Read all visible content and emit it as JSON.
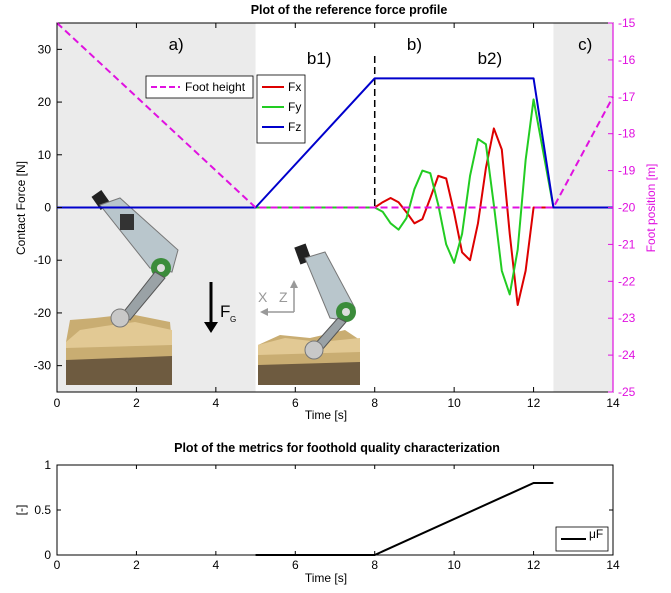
{
  "chart_data": [
    {
      "type": "line",
      "title": "Plot of the reference force profile",
      "xlabel": "Time [s]",
      "ylabel": "Contact Force [N]",
      "y2label": "Foot position [m]",
      "xlim": [
        0,
        14
      ],
      "ylim": [
        -35,
        35
      ],
      "y2lim": [
        -25,
        -15
      ],
      "x_ticks": [
        "0",
        "2",
        "4",
        "6",
        "8",
        "10",
        "12",
        "14"
      ],
      "y_ticks": [
        "30",
        "20",
        "10",
        "0",
        "-10",
        "-20",
        "-30"
      ],
      "y2_ticks": [
        "-15",
        "-16",
        "-17",
        "-18",
        "-19",
        "-20",
        "-21",
        "-22",
        "-23",
        "-24",
        "-25"
      ],
      "shaded_regions": [
        [
          0,
          5
        ],
        [
          12.5,
          14
        ]
      ],
      "vertical_marker": 8,
      "region_labels": [
        {
          "text": "a)",
          "x": 3
        },
        {
          "text": "b1)",
          "x": 6.6
        },
        {
          "text": "b)",
          "x": 9.0
        },
        {
          "text": "b2)",
          "x": 10.9
        },
        {
          "text": "c)",
          "x": 13.3
        }
      ],
      "legend_foot": "Foot height",
      "series": [
        {
          "name": "Fx",
          "color": "#dd0000",
          "x": [
            0,
            5,
            8,
            8.2,
            8.4,
            8.6,
            8.8,
            9.0,
            9.2,
            9.4,
            9.6,
            9.8,
            10.0,
            10.2,
            10.4,
            10.6,
            10.8,
            11.0,
            11.2,
            11.4,
            11.6,
            11.8,
            12.0,
            12.5,
            14
          ],
          "y": [
            0,
            0,
            0,
            1.0,
            1.8,
            1.0,
            -0.9,
            -3.0,
            -2.2,
            1.8,
            6.0,
            5.5,
            -1.0,
            -8.5,
            -10.0,
            -3.0,
            7.5,
            15.0,
            11.0,
            -5.0,
            -18.5,
            -12.0,
            0,
            0,
            0
          ]
        },
        {
          "name": "Fy",
          "color": "#22cc22",
          "x": [
            0,
            5,
            8,
            8.2,
            8.4,
            8.6,
            8.8,
            9.0,
            9.2,
            9.4,
            9.6,
            9.8,
            10.0,
            10.2,
            10.4,
            10.6,
            10.8,
            11.0,
            11.2,
            11.4,
            11.6,
            11.8,
            12.0,
            12.5,
            14
          ],
          "y": [
            0,
            0,
            0,
            -0.8,
            -3.0,
            -4.2,
            -2.0,
            3.5,
            7.0,
            6.5,
            0.5,
            -7.0,
            -10.5,
            -5.0,
            6.0,
            13.0,
            12.0,
            0.5,
            -12.0,
            -16.5,
            -8.0,
            9.0,
            20.5,
            0,
            0
          ]
        },
        {
          "name": "Fz",
          "color": "#0000cc",
          "x": [
            0,
            5,
            8,
            12,
            12.5,
            14
          ],
          "y": [
            0,
            0,
            24.5,
            24.5,
            0,
            0
          ]
        },
        {
          "name": "Foot height",
          "color": "#e011e0",
          "style": "dashed",
          "axis": "right",
          "x": [
            0,
            5,
            12.5,
            14
          ],
          "y": [
            -15,
            -20,
            -20,
            -17
          ]
        }
      ],
      "annotations": [
        "X",
        "Z",
        "F",
        "G"
      ]
    },
    {
      "type": "line",
      "title": "Plot of the metrics for foothold quality characterization",
      "xlabel": "Time [s]",
      "ylabel": "[-]",
      "xlim": [
        0,
        14
      ],
      "ylim": [
        0,
        1
      ],
      "x_ticks": [
        "0",
        "2",
        "4",
        "6",
        "8",
        "10",
        "12",
        "14"
      ],
      "y_ticks": [
        "1",
        "0.5",
        "0"
      ],
      "legend": "top-right",
      "series": [
        {
          "name": "μF",
          "color": "#000000",
          "x": [
            5,
            8,
            12,
            12.5
          ],
          "y": [
            0,
            0,
            0.8,
            0.8
          ]
        }
      ]
    }
  ]
}
